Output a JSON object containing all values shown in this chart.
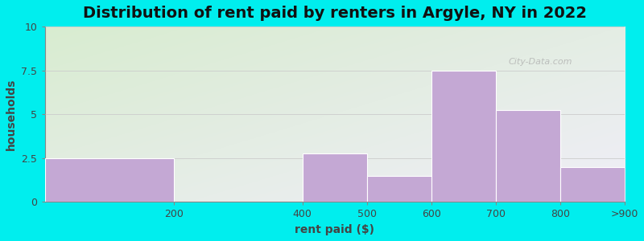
{
  "title": "Distribution of rent paid by renters in Argyle, NY in 2022",
  "xlabel": "rent paid ($)",
  "ylabel": "households",
  "bar_edges": [
    0,
    200,
    400,
    500,
    600,
    700,
    800,
    900
  ],
  "values": [
    2.5,
    0,
    2.75,
    1.5,
    7.5,
    5.25,
    2.0
  ],
  "xtick_positions": [
    200,
    400,
    500,
    600,
    700,
    800,
    900
  ],
  "xtick_labels": [
    "200",
    "400",
    "500",
    "600",
    "700",
    "800",
    ">900"
  ],
  "bar_color": "#C4A8D4",
  "bar_edge_color": "#ffffff",
  "ylim": [
    0,
    10
  ],
  "xlim": [
    0,
    900
  ],
  "yticks": [
    0,
    2.5,
    5,
    7.5,
    10
  ],
  "ytick_labels": [
    "0",
    "2.5",
    "5",
    "7.5",
    "10"
  ],
  "background_outer": "#00EEEE",
  "plot_bg_top_left": "#d8ecd0",
  "plot_bg_bottom_right": "#f0eef8",
  "title_fontsize": 14,
  "axis_label_fontsize": 10,
  "tick_fontsize": 9,
  "watermark": "City-Data.com"
}
